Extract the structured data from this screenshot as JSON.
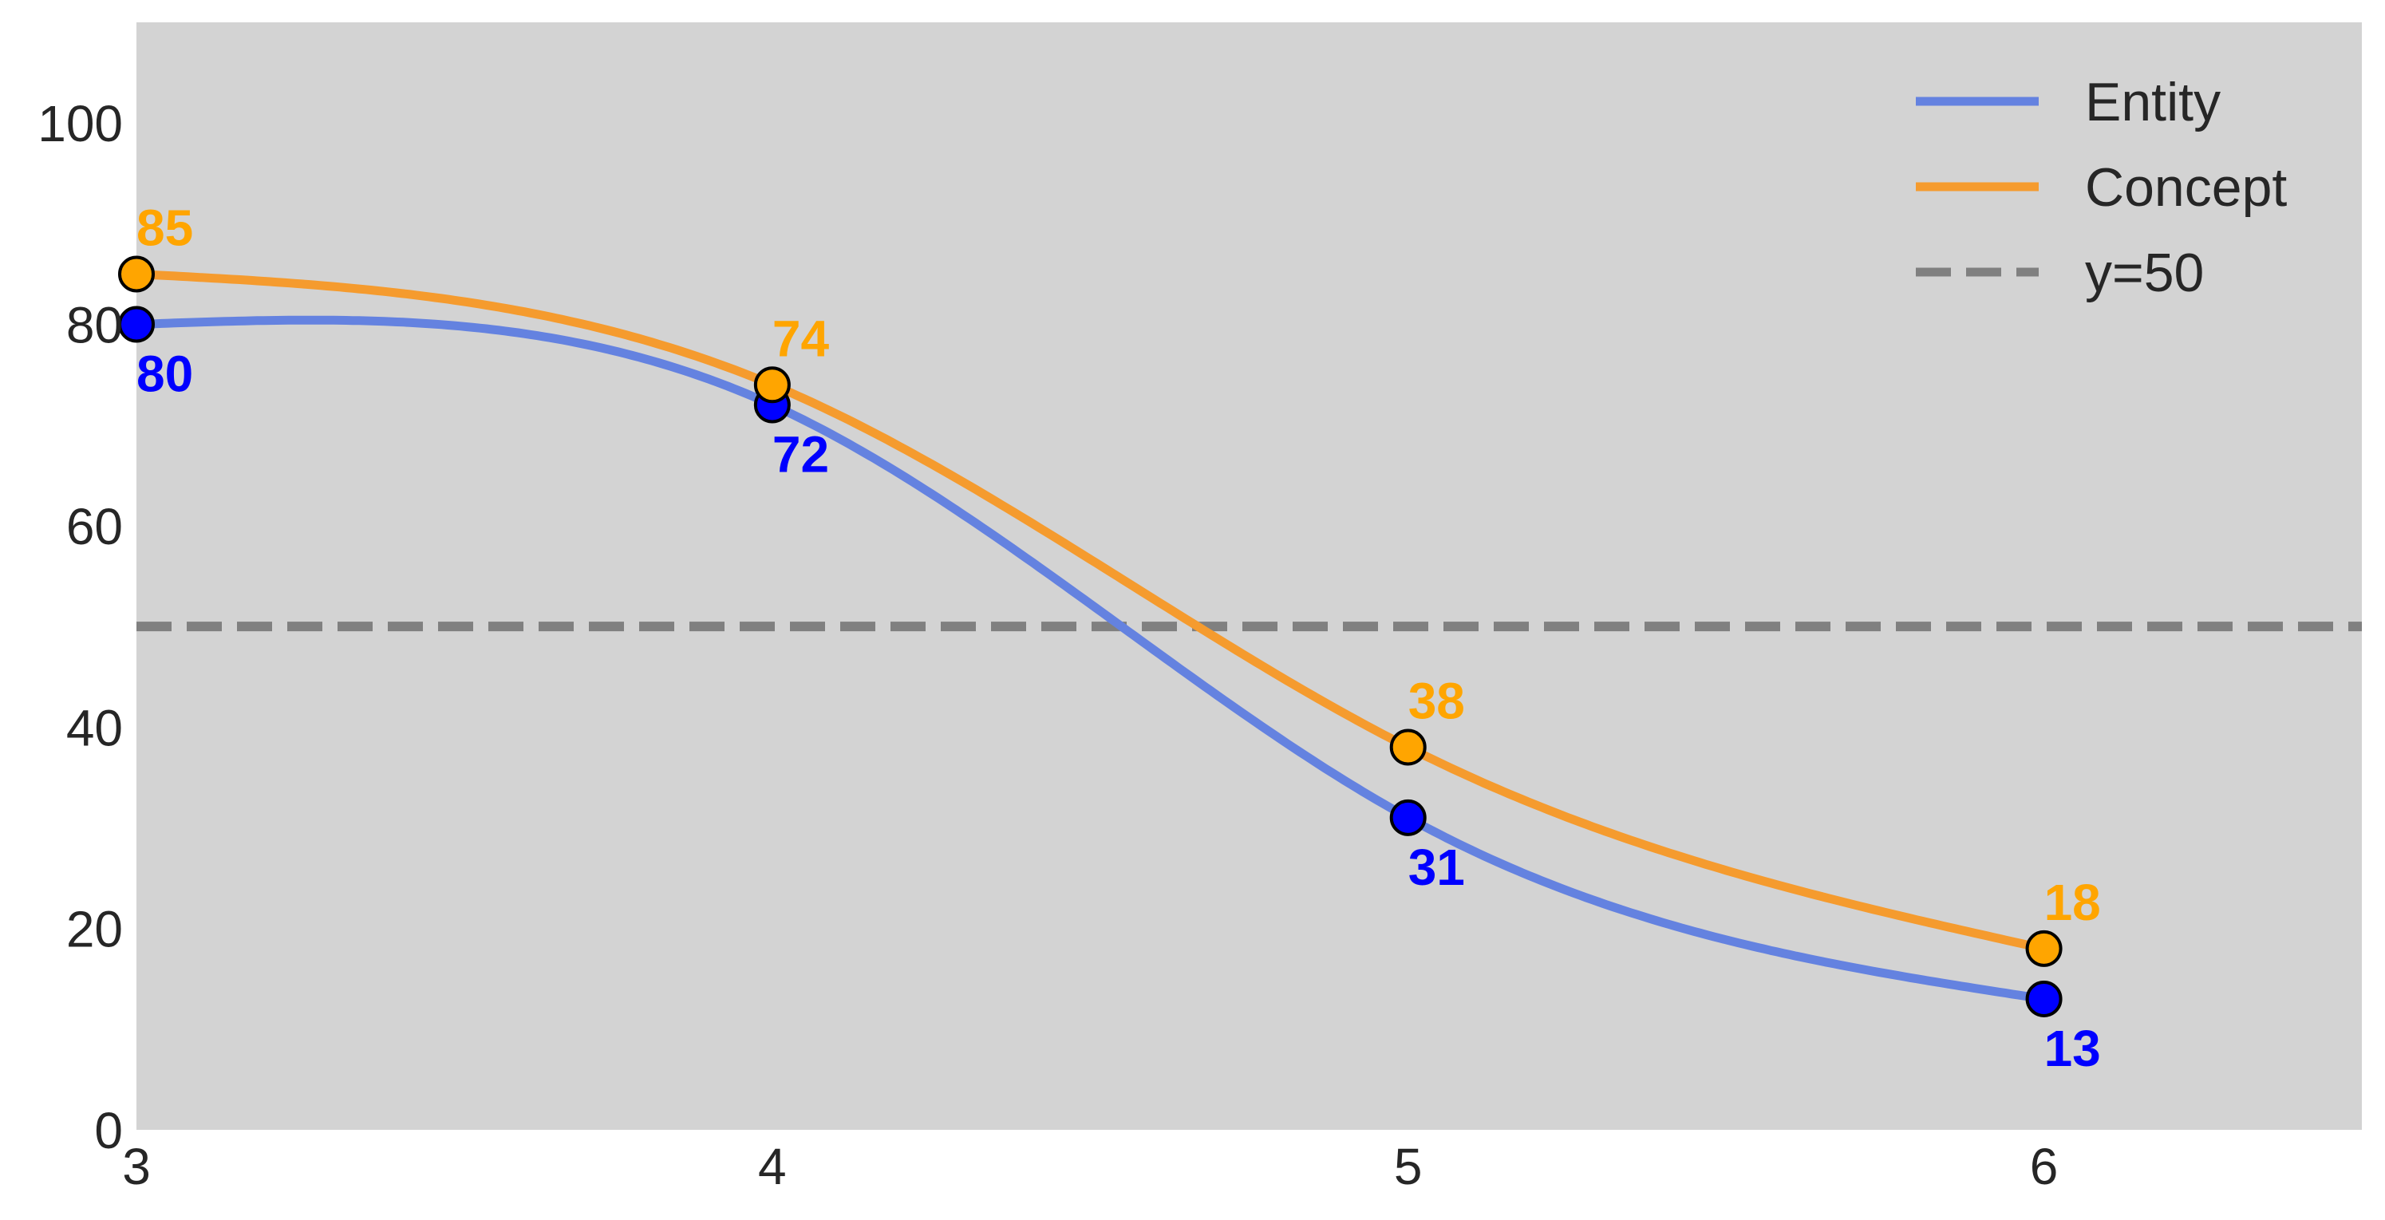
{
  "chart_data": {
    "type": "line",
    "x": [
      3,
      4,
      5,
      6
    ],
    "xlim": [
      3,
      6.5
    ],
    "ylim": [
      0,
      110
    ],
    "xticks": [
      "3",
      "4",
      "5",
      "6"
    ],
    "yticks": [
      "0",
      "20",
      "40",
      "60",
      "80",
      "100"
    ],
    "grid": false,
    "background": "#d3d3d3",
    "smooth": true,
    "legend_position": "top-right",
    "series": [
      {
        "name": "Entity",
        "values": [
          80,
          72,
          31,
          13
        ],
        "line_color": "#6482e0",
        "marker_color": "#0000ff",
        "label_color": "#0000ff",
        "label_position": "below"
      },
      {
        "name": "Concept",
        "values": [
          85,
          74,
          38,
          18
        ],
        "line_color": "#f59b2e",
        "marker_color": "#ffa500",
        "label_color": "#ffa500",
        "label_position": "above"
      }
    ],
    "reference_line": {
      "name": "y=50",
      "y": 50,
      "color": "#808080",
      "style": "dashed"
    }
  }
}
